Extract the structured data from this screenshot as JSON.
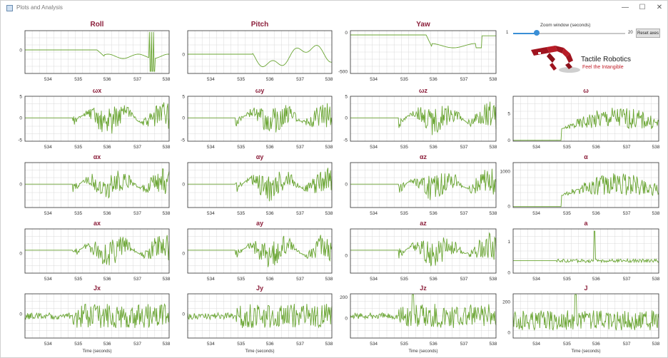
{
  "window": {
    "title": "Plots and Analysis",
    "minimize": "—",
    "maximize": "☐",
    "close": "✕"
  },
  "zoom": {
    "label": "Zoom window (seconds)",
    "min": "1",
    "max": "20",
    "value": 5,
    "value_min": 1,
    "value_max": 20,
    "reset_label": "Reset axes"
  },
  "logo": {
    "name": "Tactile Robotics",
    "tagline": "Feel the Intangible"
  },
  "colors": {
    "series": "#6aa533",
    "title": "#8b1e3a",
    "grid": "#d9d9d9",
    "frame": "#333333"
  },
  "x_axis": {
    "ticks": [
      "534",
      "535",
      "536",
      "537",
      "538"
    ],
    "label": "Time (seconds)"
  },
  "plots": [
    {
      "id": "roll",
      "title": "Roll",
      "ylabels": [
        "0"
      ]
    },
    {
      "id": "pitch",
      "title": "Pitch",
      "ylabels": [
        "0"
      ]
    },
    {
      "id": "yaw",
      "title": "Yaw",
      "ylabels": [
        "0",
        "-500"
      ]
    },
    {
      "id": "wx",
      "title": "ωx",
      "ylabels": [
        "5",
        "0",
        "-5"
      ]
    },
    {
      "id": "wy",
      "title": "ωy",
      "ylabels": [
        "5",
        "0",
        "-5"
      ]
    },
    {
      "id": "wz",
      "title": "ωz",
      "ylabels": [
        "5",
        "0",
        "-5"
      ]
    },
    {
      "id": "w",
      "title": "ω",
      "ylabels": [
        "5",
        "0"
      ]
    },
    {
      "id": "ax_",
      "title": "αx",
      "ylabels": [
        "0"
      ]
    },
    {
      "id": "ay_",
      "title": "αy",
      "ylabels": [
        "0"
      ]
    },
    {
      "id": "az_",
      "title": "αz",
      "ylabels": [
        "0"
      ]
    },
    {
      "id": "a_",
      "title": "α",
      "ylabels": [
        "1000",
        "0"
      ]
    },
    {
      "id": "ax",
      "title": "ax",
      "ylabels": [
        "0"
      ]
    },
    {
      "id": "ay",
      "title": "ay",
      "ylabels": [
        "0"
      ]
    },
    {
      "id": "az",
      "title": "az",
      "ylabels": [
        "0"
      ]
    },
    {
      "id": "a",
      "title": "a",
      "ylabels": [
        "1",
        "0"
      ]
    },
    {
      "id": "jx",
      "title": "Jx",
      "ylabels": [
        "0"
      ]
    },
    {
      "id": "jy",
      "title": "Jy",
      "ylabels": [
        "0"
      ]
    },
    {
      "id": "jz",
      "title": "Jz",
      "ylabels": [
        "200",
        "0"
      ]
    },
    {
      "id": "j",
      "title": "J",
      "ylabels": [
        "200",
        "0"
      ]
    }
  ]
}
